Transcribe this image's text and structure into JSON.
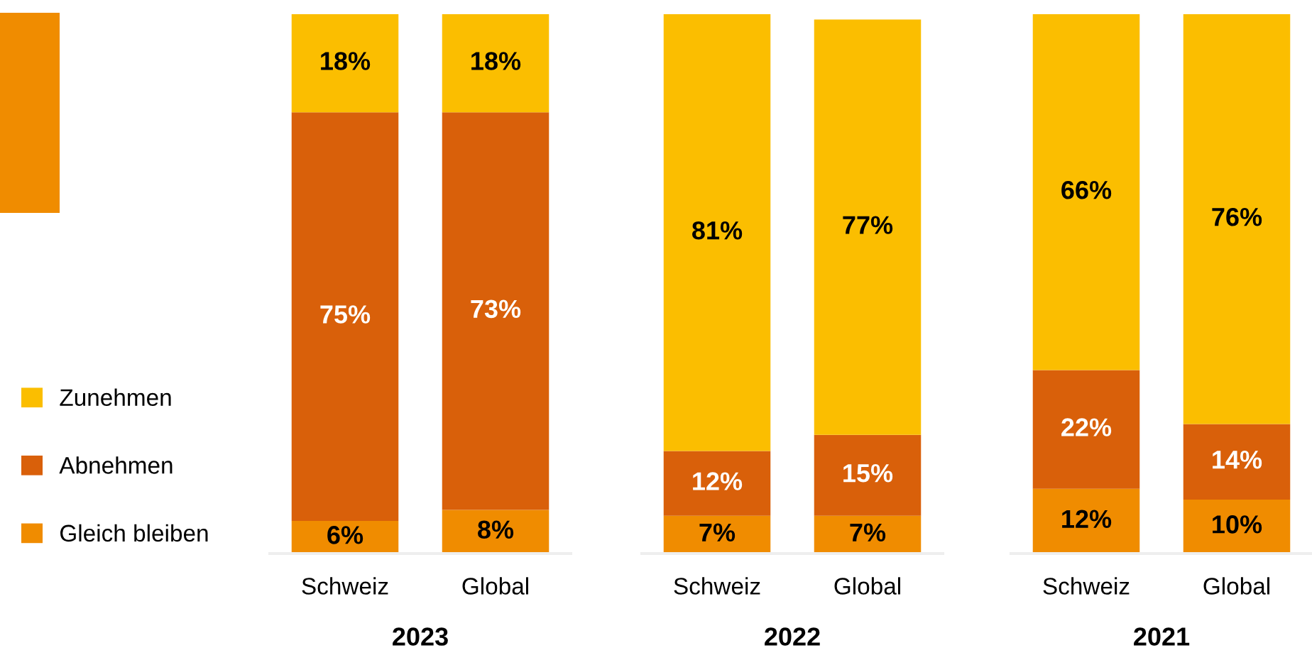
{
  "chart_data": [
    {
      "type": "bar",
      "stacked": true,
      "legend": "left",
      "xlabel": "2023",
      "categories": [
        "Schweiz",
        "Global"
      ],
      "series": [
        {
          "name": "Gleich bleiben",
          "color": "#f08c00",
          "values": [
            6,
            8
          ],
          "value_labels": [
            "6%",
            "8%"
          ]
        },
        {
          "name": "Abnehmen",
          "color": "#d9600a",
          "values": [
            75,
            73
          ],
          "value_labels": [
            "75%",
            "73%"
          ]
        },
        {
          "name": "Zunehmen",
          "color": "#fbbe00",
          "values": [
            18,
            18
          ],
          "value_labels": [
            "18%",
            "18%"
          ]
        }
      ]
    },
    {
      "type": "bar",
      "stacked": true,
      "xlabel": "2022",
      "categories": [
        "Schweiz",
        "Global"
      ],
      "series": [
        {
          "color": "#f08c00",
          "values": [
            7,
            7
          ],
          "value_labels": [
            "7%",
            "7%"
          ]
        },
        {
          "color": "#d9600a",
          "values": [
            12,
            15
          ],
          "value_labels": [
            "12%",
            "15%"
          ]
        },
        {
          "color": "#fbbe00",
          "values": [
            81,
            77
          ],
          "value_labels": [
            "81%",
            "77%"
          ]
        }
      ]
    },
    {
      "type": "bar",
      "stacked": true,
      "xlabel": "2021",
      "categories": [
        "Schweiz",
        "Global"
      ],
      "series": [
        {
          "color": "#f08c00",
          "values": [
            12,
            10
          ],
          "value_labels": [
            "12%",
            "10%"
          ]
        },
        {
          "color": "#d9600a",
          "values": [
            22,
            14
          ],
          "value_labels": [
            "22%",
            "14%"
          ]
        },
        {
          "color": "#fbbe00",
          "values": [
            66,
            76
          ],
          "value_labels": [
            "66%",
            "76%"
          ]
        }
      ]
    }
  ]
}
